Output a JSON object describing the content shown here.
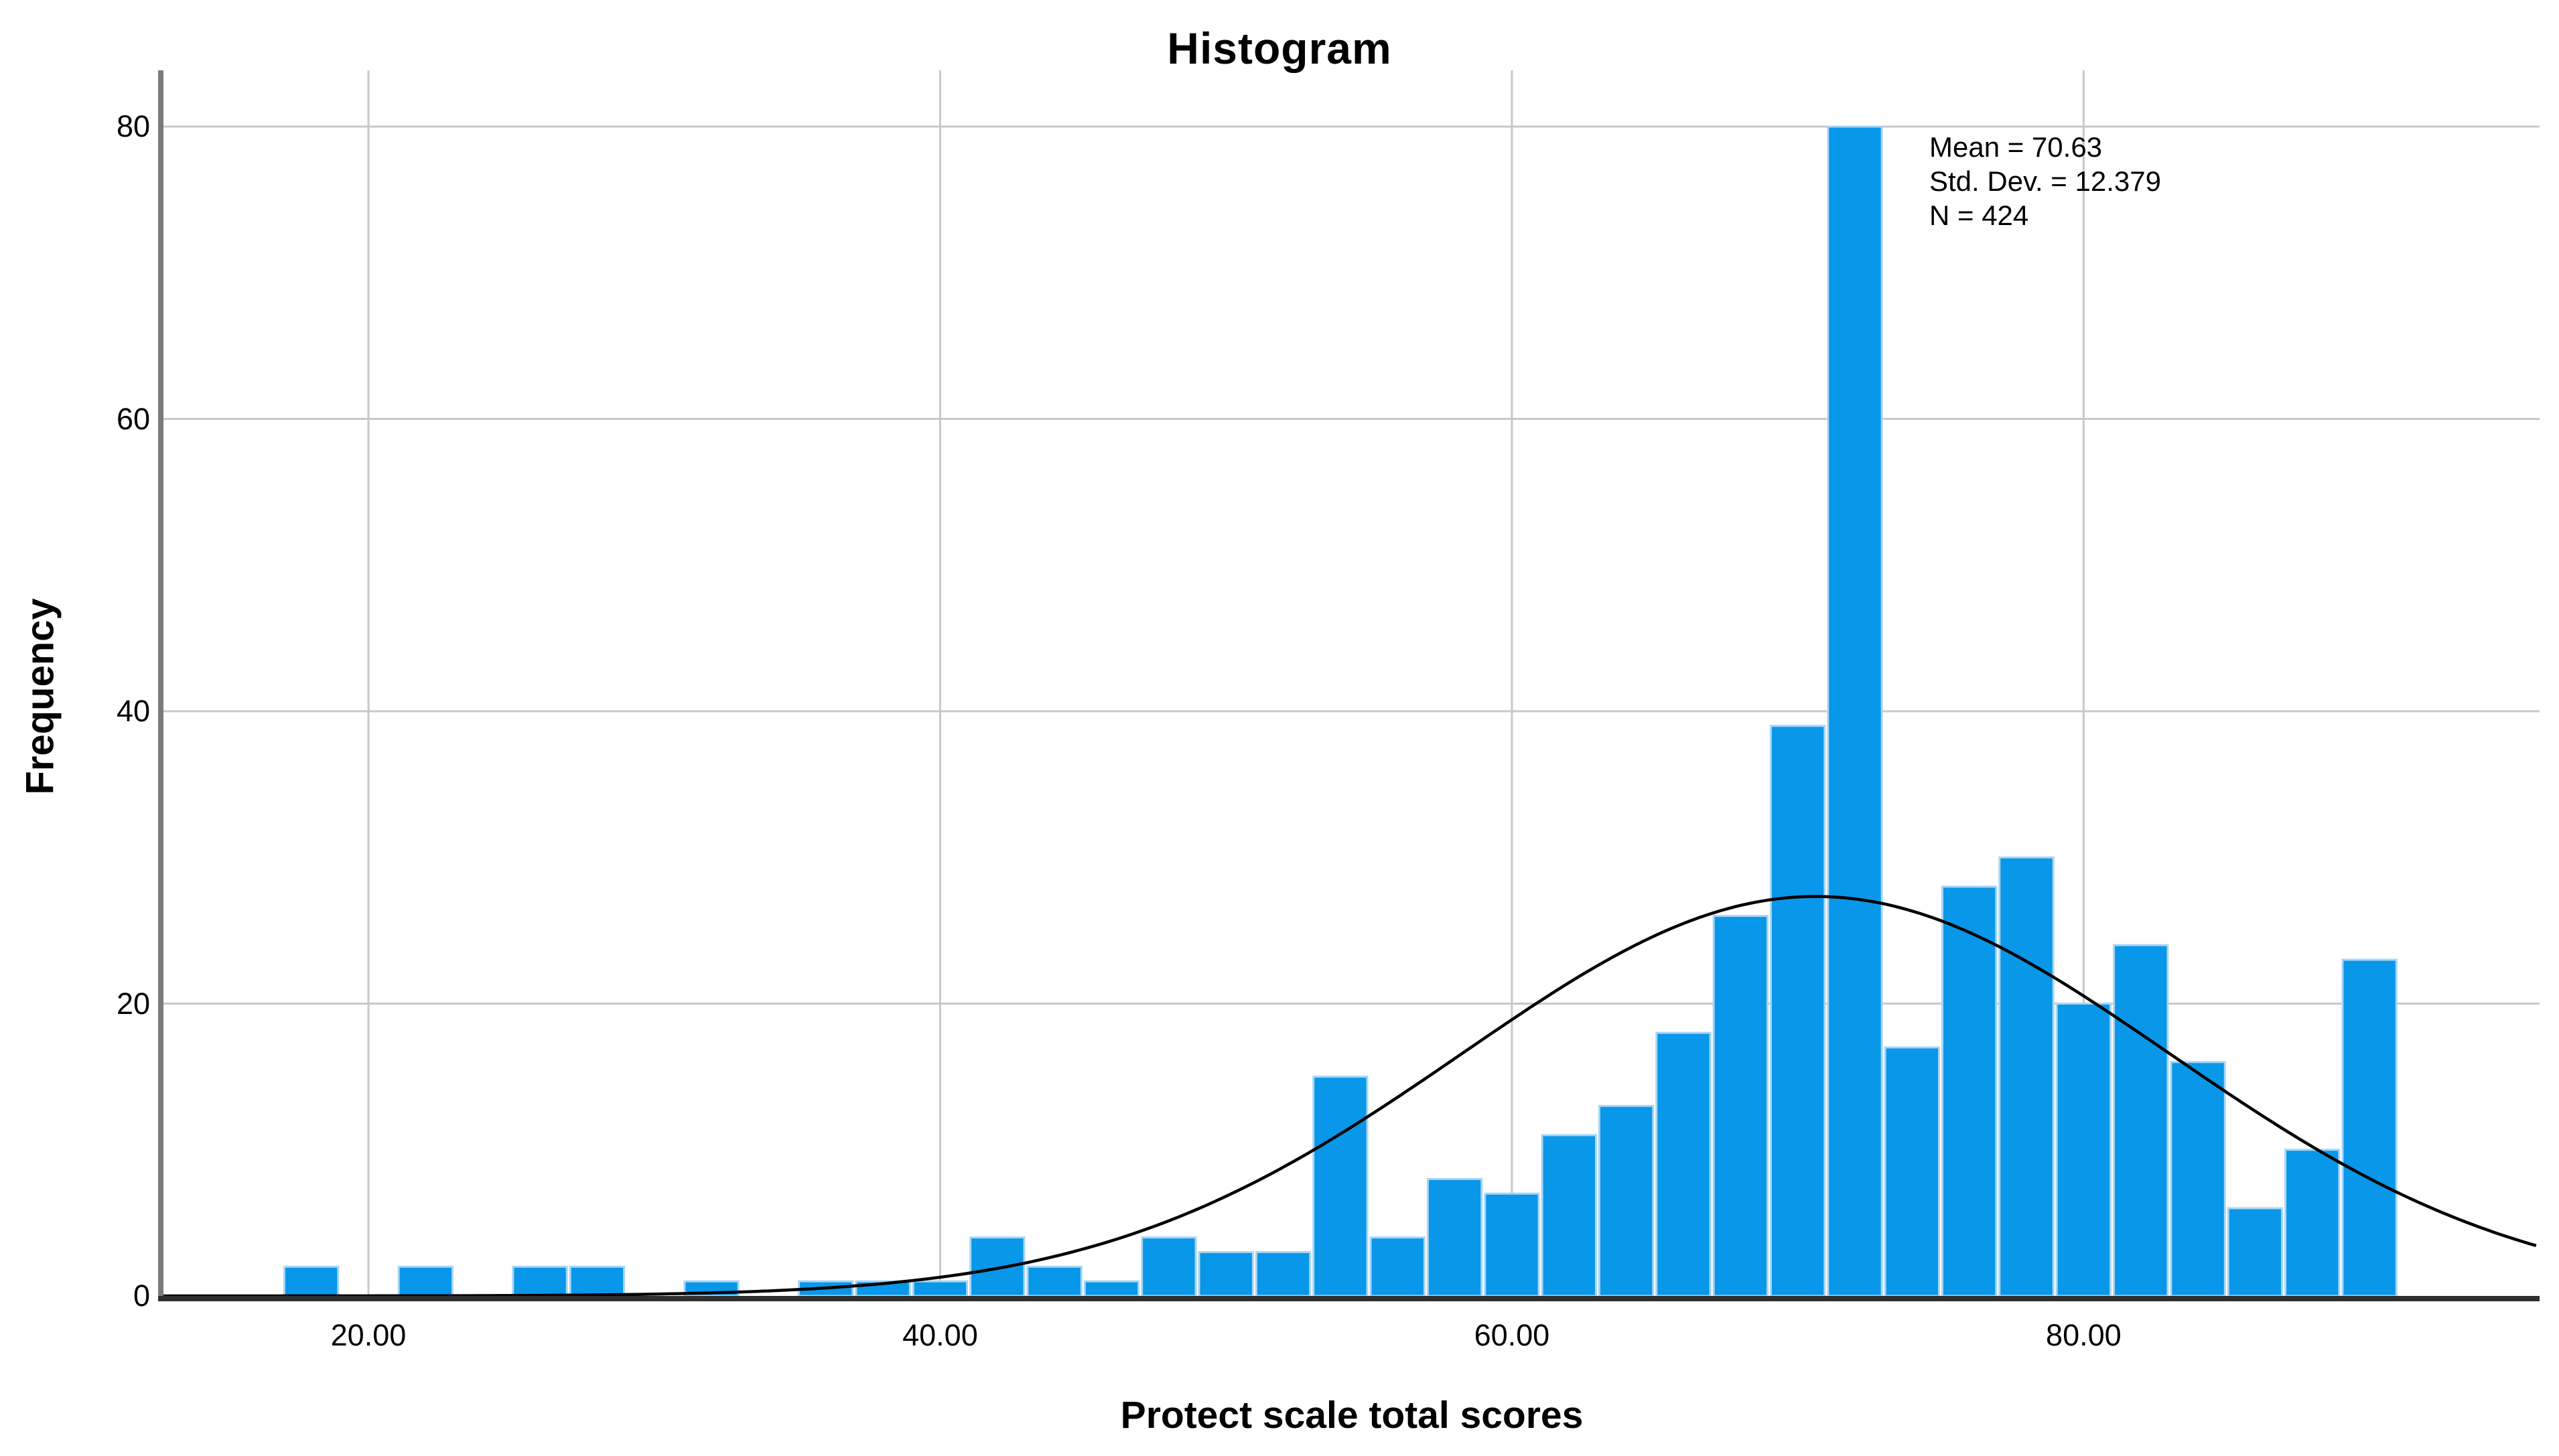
{
  "figure": {
    "title": "Histogram",
    "background": "#ffffff"
  },
  "stats_box": {
    "lines": [
      "Mean = 70.63",
      "Std. Dev. = 12.379",
      "N = 424"
    ]
  },
  "chart_data": {
    "type": "bar",
    "subtype": "histogram",
    "title": "Histogram",
    "xlabel": "Protect scale total scores",
    "ylabel": "Frequency",
    "xlim": [
      12.83,
      95.95
    ],
    "ylim": [
      0,
      83.85
    ],
    "grid": true,
    "x_tick_values": [
      20,
      40,
      60,
      80
    ],
    "x_tick_labels": [
      "20.00",
      "40.00",
      "60.00",
      "80.00"
    ],
    "y_tick_values": [
      0,
      20,
      40,
      60,
      80
    ],
    "y_tick_labels": [
      "0",
      "20",
      "40",
      "60",
      "80"
    ],
    "bin_width": 2,
    "bin_centers": [
      18,
      20,
      22,
      24,
      26,
      28,
      30,
      32,
      34,
      36,
      38,
      40,
      42,
      44,
      46,
      48,
      50,
      52,
      54,
      56,
      58,
      60,
      62,
      64,
      66,
      68,
      70,
      72,
      74,
      76,
      78,
      80,
      82,
      84,
      86,
      88,
      90
    ],
    "frequencies": [
      2,
      0,
      2,
      0,
      2,
      2,
      0,
      1,
      0,
      1,
      1,
      1,
      4,
      2,
      1,
      4,
      3,
      3,
      15,
      4,
      8,
      7,
      11,
      13,
      18,
      26,
      39,
      80,
      17,
      28,
      30,
      20,
      24,
      16,
      6,
      10,
      23
    ],
    "normal_curve": {
      "mean": 70.63,
      "std_dev": 12.379,
      "n": 424
    },
    "colors": {
      "bar_fill": "#0897e9",
      "bar_edge": "#a9d6f5",
      "grid_line": "#c8c8c8",
      "curve": "#000000",
      "axis_line": "#7b7b7b",
      "baseline": "#2f2f2f",
      "text": "#000000"
    }
  }
}
